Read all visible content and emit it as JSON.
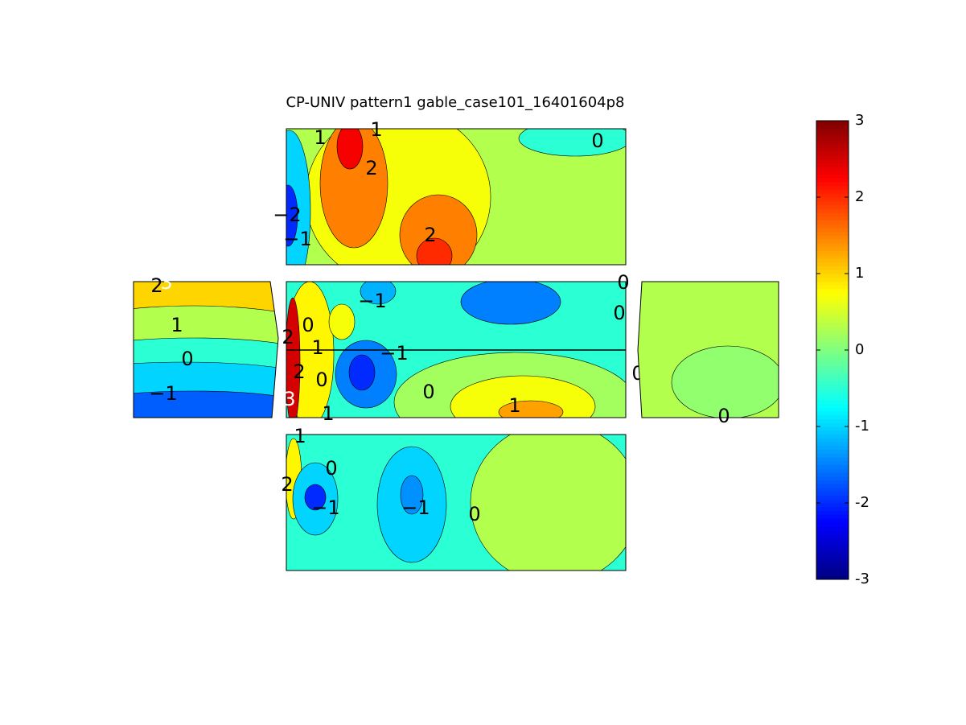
{
  "chart_data": {
    "type": "contour",
    "title": "CP-UNIV pattern1 gable_case101_16401604p8",
    "clim": [
      -3,
      3
    ],
    "cticks": [
      -3,
      -2,
      -1,
      0,
      1,
      2,
      3
    ],
    "panels": [
      {
        "base": 0.3,
        "blobs": [
          {
            "value": 0.7
          },
          {
            "value": -0.5
          },
          {
            "value": -1
          },
          {
            "value": -2
          },
          {
            "value": 1.5
          },
          {
            "value": 2.3
          },
          {
            "value": 1.5
          },
          {
            "value": 2
          }
        ],
        "labels": [
          "1",
          "1",
          "2",
          "−2",
          "−1",
          "2",
          "0"
        ]
      },
      {
        "base": -0.3,
        "blobs": [
          {
            "value": 2.5
          },
          {
            "value": 1.8
          },
          {
            "value": 1
          },
          {
            "value": 0.3
          },
          {
            "value": -0.5
          },
          {
            "value": -1
          },
          {
            "value": -1.7
          }
        ],
        "labels": [
          "2",
          "3",
          "1",
          "0",
          "−1"
        ]
      },
      {
        "base": -0.5,
        "blobs": [
          {
            "value": -1.5
          },
          {
            "value": -1.2
          },
          {
            "value": 0.2
          },
          {
            "value": 0.7
          },
          {
            "value": 1.3
          },
          {
            "value": 0.8
          },
          {
            "value": 0.7
          },
          {
            "value": -1.5
          },
          {
            "value": -2
          },
          {
            "value": 2.5
          }
        ],
        "labels": [
          "0",
          "2",
          "−1",
          "1",
          "−1",
          "2",
          "0",
          "0",
          "3",
          "1",
          "1",
          "0",
          "0",
          "0"
        ]
      },
      {
        "base": 0.3,
        "blobs": [
          {
            "value": 0.1
          }
        ],
        "labels": [
          "0"
        ]
      },
      {
        "base": -0.5,
        "blobs": [
          {
            "value": 0.3
          },
          {
            "value": -1
          },
          {
            "value": -1.4
          },
          {
            "value": 0.8
          },
          {
            "value": -1
          },
          {
            "value": -2
          }
        ],
        "labels": [
          "1",
          "0",
          "2",
          "−1",
          "−1",
          "0"
        ]
      }
    ]
  }
}
